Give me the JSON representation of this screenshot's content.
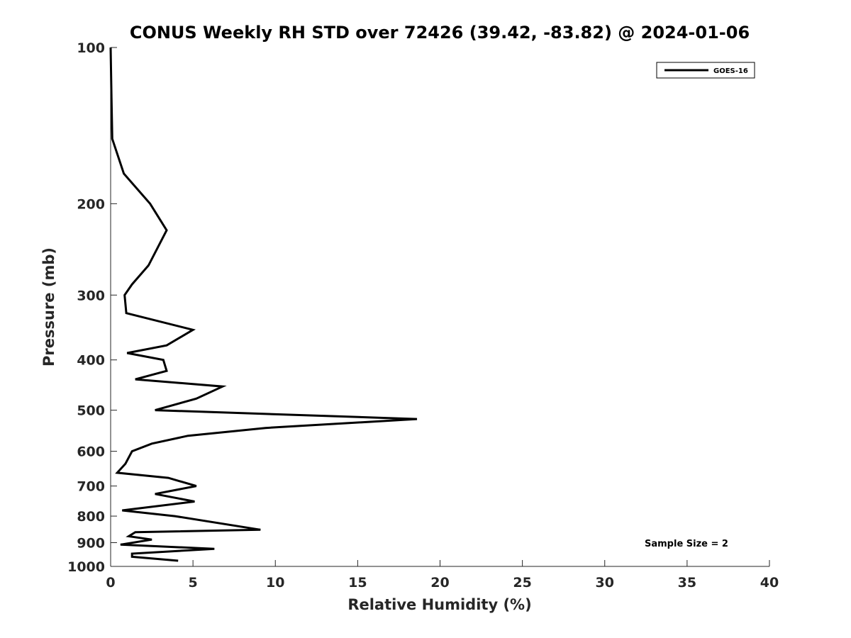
{
  "chart_data": {
    "type": "line",
    "title": "CONUS Weekly RH STD over 72426 (39.42, -83.82) @ 2024-01-06",
    "xlabel": "Relative Humidity (%)",
    "ylabel": "Pressure (mb)",
    "xlim": [
      0,
      40
    ],
    "ylim": [
      100,
      1000
    ],
    "y_scale": "log",
    "y_reversed": true,
    "grid": false,
    "legend_position": "top-right",
    "x_ticks": [
      "0",
      "5",
      "10",
      "15",
      "20",
      "25",
      "30",
      "35",
      "40"
    ],
    "y_ticks": [
      "100",
      "200",
      "300",
      "400",
      "500",
      "600",
      "700",
      "800",
      "900",
      "1000"
    ],
    "annotation": "Sample Size = 2",
    "series": [
      {
        "name": "GOES-16",
        "color": "#000000",
        "points": [
          [
            0.0,
            100
          ],
          [
            0.05,
            125
          ],
          [
            0.1,
            150
          ],
          [
            0.8,
            175
          ],
          [
            2.4,
            200
          ],
          [
            3.4,
            225
          ],
          [
            2.3,
            263
          ],
          [
            1.3,
            286
          ],
          [
            0.85,
            300
          ],
          [
            0.95,
            325
          ],
          [
            5.0,
            350
          ],
          [
            3.4,
            375
          ],
          [
            1.0,
            388
          ],
          [
            3.2,
            400
          ],
          [
            3.4,
            420
          ],
          [
            1.5,
            436
          ],
          [
            6.8,
            450
          ],
          [
            5.2,
            475
          ],
          [
            2.7,
            500
          ],
          [
            18.6,
            520
          ],
          [
            9.4,
            541
          ],
          [
            4.7,
            560
          ],
          [
            2.5,
            580
          ],
          [
            1.3,
            600
          ],
          [
            0.9,
            634
          ],
          [
            0.4,
            660
          ],
          [
            3.5,
            675
          ],
          [
            5.2,
            700
          ],
          [
            2.7,
            725
          ],
          [
            5.1,
            750
          ],
          [
            0.7,
            780
          ],
          [
            3.9,
            800
          ],
          [
            9.1,
            850
          ],
          [
            1.5,
            859
          ],
          [
            1.1,
            875
          ],
          [
            2.5,
            888
          ],
          [
            0.6,
            908
          ],
          [
            6.3,
            925
          ],
          [
            1.3,
            945
          ],
          [
            1.3,
            958
          ],
          [
            4.1,
            975
          ]
        ]
      }
    ]
  }
}
